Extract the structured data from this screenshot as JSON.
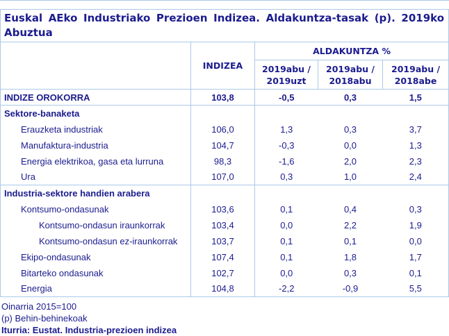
{
  "colors": {
    "border": "#aac9ea",
    "text": "#1b1b8f"
  },
  "chart_data": {
    "type": "table",
    "title": "Euskal AEko Industriako Prezioen Indizea. Aldakuntza-tasak (p). 2019ko Abuztua",
    "index_column_header": "INDIZEA",
    "change_group_header": "ALDAKUNTZA %",
    "change_subheaders": [
      "2019abu / 2019uzt",
      "2019abu / 2018abu",
      "2019abu / 2018abe"
    ],
    "rows": [
      {
        "label": "INDIZE OROKORRA",
        "type": "total",
        "indent": 0,
        "values": [
          "103,8",
          "-0,5",
          "0,3",
          "1,5"
        ]
      },
      {
        "label": "Sektore-banaketa",
        "type": "section",
        "indent": 0,
        "values": [
          "",
          "",
          "",
          ""
        ]
      },
      {
        "label": "Erauzketa industriak",
        "type": "data",
        "indent": 1,
        "values": [
          "106,0",
          "1,3",
          "0,3",
          "3,7"
        ]
      },
      {
        "label": "Manufaktura-industria",
        "type": "data",
        "indent": 1,
        "values": [
          "104,7",
          "-0,3",
          "0,0",
          "1,3"
        ]
      },
      {
        "label": "Energia elektrikoa, gasa eta lurruna",
        "type": "data",
        "indent": 1,
        "values": [
          "98,3",
          "-1,6",
          "2,0",
          "2,3"
        ]
      },
      {
        "label": "Ura",
        "type": "data",
        "indent": 1,
        "values": [
          "107,0",
          "0,3",
          "1,0",
          "2,4"
        ]
      },
      {
        "label": "Industria-sektore handien arabera",
        "type": "section",
        "indent": 0,
        "values": [
          "",
          "",
          "",
          ""
        ]
      },
      {
        "label": "Kontsumo-ondasunak",
        "type": "data",
        "indent": 1,
        "values": [
          "103,6",
          "0,1",
          "0,4",
          "0,3"
        ]
      },
      {
        "label": "Kontsumo-ondasun iraunkorrak",
        "type": "data",
        "indent": 2,
        "values": [
          "103,4",
          "0,0",
          "2,2",
          "1,9"
        ]
      },
      {
        "label": "Kontsumo-ondasun ez-iraunkorrak",
        "type": "data",
        "indent": 2,
        "values": [
          "103,7",
          "0,1",
          "0,1",
          "0,0"
        ]
      },
      {
        "label": "Ekipo-ondasunak",
        "type": "data",
        "indent": 1,
        "values": [
          "107,4",
          "0,1",
          "1,8",
          "1,7"
        ]
      },
      {
        "label": "Bitarteko ondasunak",
        "type": "data",
        "indent": 1,
        "values": [
          "102,7",
          "0,0",
          "0,3",
          "0,1"
        ]
      },
      {
        "label": "Energia",
        "type": "data",
        "indent": 1,
        "values": [
          "104,8",
          "-2,2",
          "-0,9",
          "5,5"
        ]
      }
    ],
    "footnotes": [
      "Oinarria 2015=100",
      "(p) Behin-behinekoak"
    ],
    "source": "Iturria: Eustat. Industria-prezioen indizea"
  }
}
